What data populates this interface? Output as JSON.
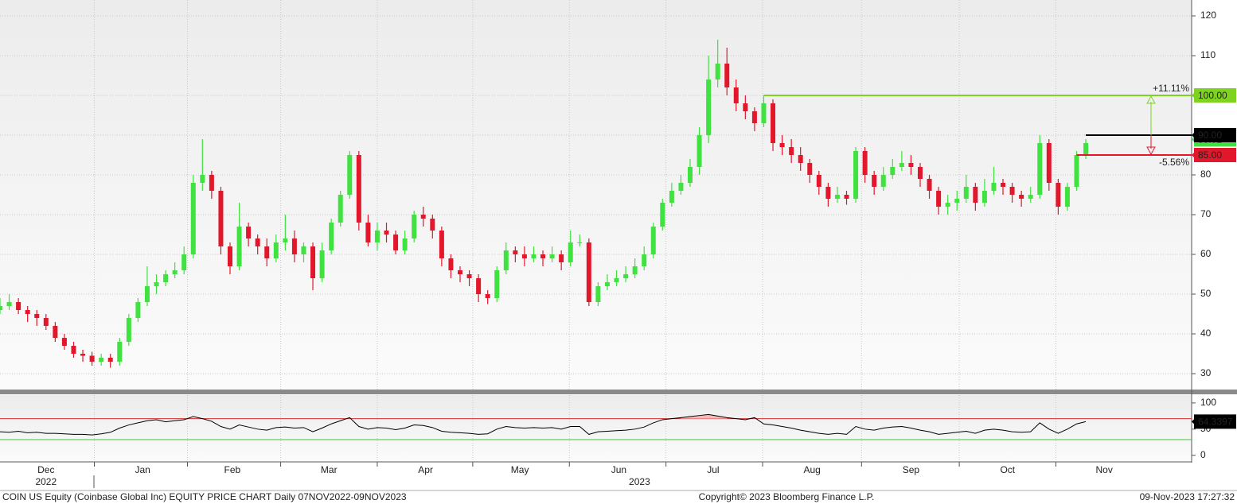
{
  "footer": {
    "left": "COIN US Equity (Coinbase Global Inc) EQUITY PRICE CHART  Daily 07NOV2022-09NOV2023",
    "center": "Copyright© 2023 Bloomberg Finance L.P.",
    "right": "09-Nov-2023 17:27:32"
  },
  "chart_data": [
    {
      "type": "candlestick",
      "up_color": "#3fe23f",
      "down_color": "#e3172b",
      "xlim": [
        0,
        259
      ],
      "xticks": [
        {
          "value": 10,
          "label": "Dec"
        },
        {
          "value": 31,
          "label": "Jan"
        },
        {
          "value": 50.5,
          "label": "Feb"
        },
        {
          "value": 71.5,
          "label": "Mar"
        },
        {
          "value": 92.5,
          "label": "Apr"
        },
        {
          "value": 113,
          "label": "May"
        },
        {
          "value": 134.5,
          "label": "Jun"
        },
        {
          "value": 155,
          "label": "Jul"
        },
        {
          "value": 176.5,
          "label": "Aug"
        },
        {
          "value": 198,
          "label": "Sep"
        },
        {
          "value": 219,
          "label": "Oct"
        },
        {
          "value": 240,
          "label": "Nov"
        }
      ],
      "year_labels": [
        {
          "value": 10,
          "label": "2022"
        },
        {
          "value": 139,
          "label": "2023"
        }
      ],
      "ylim": [
        26,
        124
      ],
      "yticks": [
        30,
        40,
        50,
        60,
        70,
        80,
        90,
        100,
        110,
        120
      ],
      "grid": true,
      "x": [
        0,
        2,
        4,
        6,
        8,
        10,
        12,
        14,
        16,
        18,
        20,
        22,
        24,
        26,
        28,
        30,
        32,
        34,
        36,
        38,
        40,
        42,
        44,
        46,
        48,
        50,
        52,
        54,
        56,
        58,
        60,
        62,
        64,
        66,
        68,
        70,
        72,
        74,
        76,
        78,
        80,
        82,
        84,
        86,
        88,
        90,
        92,
        94,
        96,
        98,
        100,
        102,
        104,
        106,
        108,
        110,
        112,
        114,
        116,
        118,
        120,
        122,
        124,
        126,
        128,
        130,
        132,
        134,
        136,
        138,
        140,
        142,
        144,
        146,
        148,
        150,
        152,
        154,
        156,
        158,
        160,
        162,
        164,
        166,
        168,
        170,
        172,
        174,
        176,
        178,
        180,
        182,
        184,
        186,
        188,
        190,
        192,
        194,
        196,
        198,
        200,
        202,
        204,
        206,
        208,
        210,
        212,
        214,
        216,
        218,
        220,
        222,
        224,
        226,
        228,
        230,
        232,
        234,
        236
      ],
      "open": [
        46,
        47,
        48,
        46,
        45,
        44,
        42,
        39,
        37,
        35,
        34.5,
        33,
        34,
        33,
        38,
        44,
        48,
        52,
        53,
        55,
        56,
        60,
        78,
        80,
        76,
        62,
        57,
        67,
        64,
        62,
        59,
        63,
        64,
        60,
        62,
        54,
        61,
        68,
        75,
        85,
        68,
        63,
        66,
        65,
        61,
        64,
        70,
        69,
        66,
        59,
        56,
        55,
        54,
        50,
        49,
        56,
        61,
        60,
        59,
        60,
        59,
        60,
        58,
        63,
        63,
        48,
        52,
        53,
        54,
        55,
        57,
        60,
        67,
        73,
        76,
        78,
        82,
        90,
        104,
        108,
        102,
        98,
        96,
        93,
        98,
        88,
        87,
        85,
        83,
        80,
        77,
        74,
        75,
        74,
        86,
        80,
        77,
        80,
        82,
        83,
        82,
        79,
        76,
        72,
        73,
        74,
        77,
        73,
        76,
        78,
        77,
        75,
        74,
        75,
        88,
        78,
        72,
        77,
        85
      ],
      "high": [
        49,
        50,
        49,
        47,
        46,
        45,
        43,
        40,
        38,
        36,
        35.5,
        35,
        35,
        39,
        45,
        49,
        57,
        55,
        56,
        58,
        62,
        80,
        89,
        81,
        77,
        63,
        73,
        68,
        65,
        64,
        65,
        70,
        66,
        63,
        63,
        63,
        69,
        76,
        86,
        86,
        70,
        68,
        68,
        66,
        66,
        71,
        72,
        70,
        67,
        60,
        57,
        56,
        55,
        51,
        57,
        63,
        62,
        62,
        62,
        61,
        62,
        61,
        66,
        65,
        64,
        53,
        55,
        56,
        57,
        59,
        62,
        68,
        74,
        78,
        80,
        84,
        92,
        110,
        114,
        112,
        104,
        100,
        97,
        100,
        99,
        90,
        89,
        87,
        84,
        81,
        78,
        77,
        76,
        87,
        87,
        81,
        82,
        84,
        86,
        85,
        83,
        80,
        77,
        75,
        76,
        80,
        78,
        79,
        82,
        79,
        78,
        76,
        77,
        90,
        89,
        79,
        78,
        86,
        89
      ],
      "low": [
        45,
        46,
        45,
        43,
        42,
        41,
        38,
        36,
        34,
        33,
        32,
        32,
        31.5,
        32,
        37,
        43,
        47,
        50,
        52,
        54,
        55,
        59,
        76,
        74,
        60,
        55,
        56,
        62,
        60,
        57,
        58,
        61,
        58,
        58,
        51,
        53,
        60,
        67,
        74,
        66,
        62,
        61,
        63,
        60,
        60,
        63,
        67,
        64,
        57,
        54,
        53,
        52,
        48,
        47.5,
        48,
        55,
        58,
        57,
        58,
        57,
        58,
        56,
        57,
        62,
        47,
        47,
        51,
        52,
        53,
        54,
        56,
        59,
        66,
        72,
        75,
        77,
        80,
        88,
        102,
        100,
        96,
        94,
        91,
        92,
        86,
        85,
        83,
        81,
        78,
        75,
        72,
        73,
        72.5,
        73,
        78,
        75,
        76,
        79,
        81,
        80,
        77,
        74,
        70,
        70,
        71,
        73,
        71,
        72,
        75,
        75,
        73,
        72,
        73,
        74,
        76,
        70,
        71,
        76,
        84
      ],
      "close": [
        47,
        48,
        46,
        45,
        44,
        42,
        39,
        37,
        35,
        34.5,
        33,
        34,
        33,
        38,
        44,
        48,
        52,
        53,
        55,
        56,
        60,
        78,
        80,
        76,
        62,
        57,
        67,
        64,
        62,
        59,
        63,
        64,
        60,
        62,
        54,
        61,
        68,
        75,
        85,
        68,
        63,
        66,
        65,
        61,
        64,
        70,
        69,
        66,
        59,
        56,
        55,
        54,
        50,
        49,
        56,
        61,
        60,
        59,
        60,
        59,
        60,
        58,
        63,
        63,
        48,
        52,
        53,
        54,
        55,
        57,
        60,
        67,
        73,
        76,
        78,
        82,
        90,
        104,
        108,
        102,
        98,
        96,
        93,
        98,
        88,
        87,
        85,
        83,
        80,
        77,
        74,
        75,
        74,
        86,
        80,
        77,
        80,
        82,
        83,
        82,
        79,
        76,
        72,
        73,
        74,
        77,
        73,
        76,
        78,
        77,
        75,
        74,
        75,
        88,
        78,
        72,
        77,
        85,
        88
      ],
      "last_price": 88.92,
      "last_price_color": "#3fe23f",
      "levels": [
        {
          "value": 100,
          "label": "100.00",
          "color": "#7ed321",
          "text_color": "#000000",
          "start": 166
        },
        {
          "value": 90,
          "label": "90.00",
          "color": "#000000",
          "text_color": "#ffffff",
          "start": 236
        },
        {
          "value": 85,
          "label": "85.00",
          "color": "#e3172b",
          "text_color": "#ffffff",
          "start": 234
        }
      ],
      "annotations": [
        {
          "text": "+11.11%",
          "color": "#7ed321"
        },
        {
          "text": "-5.56%",
          "color": "#e3172b"
        }
      ]
    },
    {
      "type": "line",
      "color": "#000000",
      "ylim": [
        -11,
        115
      ],
      "yticks": [
        0,
        50,
        100
      ],
      "levels": [
        {
          "value": 70,
          "color": "#d9302f"
        },
        {
          "value": 30,
          "color": "#3fc23f"
        }
      ],
      "values": [
        45,
        44,
        46,
        43,
        44,
        42,
        42,
        41,
        40,
        40,
        39,
        41,
        44,
        52,
        58,
        62,
        66,
        68,
        64,
        66,
        68,
        74,
        70,
        65,
        55,
        50,
        58,
        54,
        50,
        48,
        53,
        54,
        52,
        53,
        45,
        52,
        60,
        66,
        72,
        55,
        50,
        53,
        52,
        49,
        52,
        58,
        57,
        53,
        46,
        44,
        43,
        42,
        40,
        41,
        50,
        55,
        53,
        52,
        53,
        52,
        53,
        50,
        55,
        55,
        40,
        45,
        46,
        47,
        48,
        50,
        54,
        62,
        68,
        70,
        72,
        74,
        76,
        78,
        75,
        72,
        70,
        68,
        72,
        60,
        58,
        55,
        52,
        48,
        45,
        42,
        40,
        42,
        40,
        55,
        50,
        48,
        52,
        54,
        55,
        52,
        48,
        45,
        40,
        42,
        44,
        46,
        42,
        48,
        50,
        48,
        45,
        44,
        45,
        62,
        50,
        42,
        50,
        60,
        64.3397
      ],
      "last_value_color": "#000000"
    }
  ]
}
